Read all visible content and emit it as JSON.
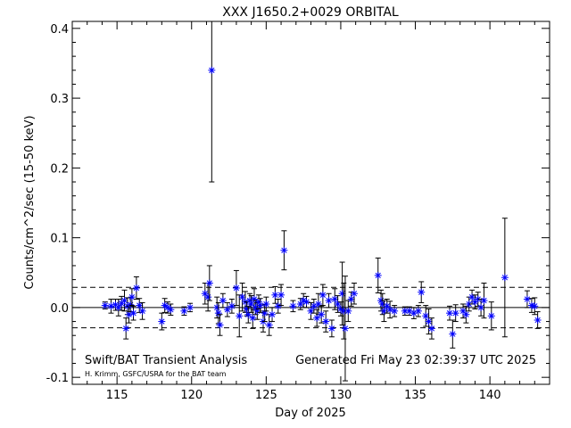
{
  "chart_data": {
    "type": "scatter",
    "title": "XXX J1650.2+0029 ORBITAL",
    "xlabel": "Day of 2025",
    "ylabel": "Counts/cm^2/sec (15-50 keV)",
    "xlim": [
      112,
      144
    ],
    "ylim": [
      -0.11,
      0.41
    ],
    "xticks": [
      115,
      120,
      125,
      130,
      135,
      140
    ],
    "xtick_labels": [
      "115",
      "120",
      "125",
      "130",
      "135",
      "140"
    ],
    "yticks": [
      -0.1,
      0.0,
      0.1,
      0.2,
      0.3,
      0.4
    ],
    "ytick_labels": [
      "-0.1",
      "0.0",
      "0.1",
      "0.2",
      "0.3",
      "0.4"
    ],
    "zero_line": 0.0,
    "threshold_lines": [
      0.029,
      -0.029
    ],
    "grid": false,
    "marker": "asterisk",
    "marker_color": "#0000ff",
    "errorbar_color": "#000000",
    "points": [
      [
        114.2,
        0.003,
        0.005
      ],
      [
        114.6,
        0.002,
        0.01
      ],
      [
        114.9,
        0.004,
        0.008
      ],
      [
        115.1,
        0.0,
        0.012
      ],
      [
        115.3,
        0.006,
        0.01
      ],
      [
        115.5,
        0.01,
        0.015
      ],
      [
        115.6,
        -0.03,
        0.015
      ],
      [
        115.7,
        0.002,
        0.012
      ],
      [
        115.8,
        -0.01,
        0.012
      ],
      [
        115.9,
        0.004,
        0.01
      ],
      [
        116.0,
        0.015,
        0.012
      ],
      [
        116.1,
        -0.008,
        0.01
      ],
      [
        116.3,
        0.028,
        0.016
      ],
      [
        116.5,
        0.003,
        0.01
      ],
      [
        116.7,
        -0.005,
        0.012
      ],
      [
        118.0,
        -0.02,
        0.012
      ],
      [
        118.2,
        0.003,
        0.01
      ],
      [
        118.4,
        0.0,
        0.008
      ],
      [
        118.6,
        -0.003,
        0.008
      ],
      [
        119.5,
        -0.005,
        0.006
      ],
      [
        119.9,
        0.0,
        0.006
      ],
      [
        120.9,
        0.02,
        0.015
      ],
      [
        121.1,
        0.015,
        0.02
      ],
      [
        121.2,
        0.035,
        0.025
      ],
      [
        121.35,
        0.34,
        0.16
      ],
      [
        121.7,
        0.0,
        0.015
      ],
      [
        121.8,
        -0.008,
        0.015
      ],
      [
        121.9,
        -0.025,
        0.015
      ],
      [
        122.1,
        0.01,
        0.01
      ],
      [
        122.4,
        -0.003,
        0.01
      ],
      [
        122.7,
        0.002,
        0.01
      ],
      [
        123.0,
        0.028,
        0.025
      ],
      [
        123.2,
        -0.012,
        0.03
      ],
      [
        123.4,
        0.015,
        0.02
      ],
      [
        123.6,
        0.008,
        0.015
      ],
      [
        123.7,
        -0.002,
        0.01
      ],
      [
        123.8,
        -0.01,
        0.012
      ],
      [
        123.9,
        0.01,
        0.01
      ],
      [
        124.0,
        0.005,
        0.012
      ],
      [
        124.1,
        -0.015,
        0.015
      ],
      [
        124.2,
        0.012,
        0.015
      ],
      [
        124.3,
        0.0,
        0.01
      ],
      [
        124.4,
        -0.005,
        0.012
      ],
      [
        124.5,
        0.008,
        0.01
      ],
      [
        124.6,
        0.003,
        0.01
      ],
      [
        124.8,
        -0.02,
        0.015
      ],
      [
        124.9,
        -0.008,
        0.012
      ],
      [
        125.0,
        0.005,
        0.01
      ],
      [
        125.2,
        -0.025,
        0.015
      ],
      [
        125.4,
        -0.01,
        0.01
      ],
      [
        125.6,
        0.018,
        0.012
      ],
      [
        125.8,
        0.002,
        0.01
      ],
      [
        126.0,
        0.018,
        0.015
      ],
      [
        126.2,
        0.082,
        0.028
      ],
      [
        126.8,
        0.002,
        0.008
      ],
      [
        127.3,
        0.005,
        0.008
      ],
      [
        127.5,
        0.01,
        0.01
      ],
      [
        127.7,
        0.008,
        0.008
      ],
      [
        128.0,
        -0.005,
        0.012
      ],
      [
        128.2,
        0.002,
        0.01
      ],
      [
        128.4,
        -0.015,
        0.012
      ],
      [
        128.5,
        0.005,
        0.015
      ],
      [
        128.7,
        -0.01,
        0.012
      ],
      [
        128.8,
        0.018,
        0.015
      ],
      [
        129.0,
        -0.02,
        0.015
      ],
      [
        129.2,
        0.01,
        0.01
      ],
      [
        129.4,
        -0.03,
        0.012
      ],
      [
        129.6,
        0.012,
        0.015
      ],
      [
        129.8,
        0.005,
        0.012
      ],
      [
        130.0,
        -0.002,
        0.01
      ],
      [
        130.1,
        0.02,
        0.045
      ],
      [
        130.2,
        -0.005,
        0.04
      ],
      [
        130.3,
        -0.03,
        0.075
      ],
      [
        130.5,
        -0.005,
        0.015
      ],
      [
        130.7,
        0.012,
        0.01
      ],
      [
        130.9,
        0.02,
        0.015
      ],
      [
        132.5,
        0.046,
        0.025
      ],
      [
        132.7,
        0.01,
        0.015
      ],
      [
        132.8,
        0.005,
        0.015
      ],
      [
        132.9,
        -0.005,
        0.015
      ],
      [
        133.1,
        0.002,
        0.01
      ],
      [
        133.3,
        -0.003,
        0.012
      ],
      [
        133.6,
        -0.005,
        0.008
      ],
      [
        134.3,
        -0.005,
        0.006
      ],
      [
        134.6,
        -0.005,
        0.006
      ],
      [
        134.9,
        -0.008,
        0.008
      ],
      [
        135.2,
        -0.005,
        0.008
      ],
      [
        135.4,
        0.022,
        0.015
      ],
      [
        135.7,
        -0.012,
        0.015
      ],
      [
        135.9,
        -0.02,
        0.018
      ],
      [
        136.1,
        -0.03,
        0.015
      ],
      [
        137.3,
        -0.008,
        0.01
      ],
      [
        137.5,
        -0.038,
        0.02
      ],
      [
        137.7,
        -0.008,
        0.012
      ],
      [
        138.2,
        -0.005,
        0.01
      ],
      [
        138.4,
        -0.01,
        0.012
      ],
      [
        138.6,
        0.005,
        0.01
      ],
      [
        138.8,
        0.015,
        0.01
      ],
      [
        139.0,
        0.008,
        0.01
      ],
      [
        139.2,
        0.012,
        0.01
      ],
      [
        139.4,
        0.0,
        0.012
      ],
      [
        139.6,
        0.01,
        0.025
      ],
      [
        140.1,
        -0.012,
        0.02
      ],
      [
        141.0,
        0.043,
        0.085
      ],
      [
        142.5,
        0.012,
        0.012
      ],
      [
        142.8,
        0.003,
        0.01
      ],
      [
        143.0,
        0.002,
        0.012
      ],
      [
        143.2,
        -0.018,
        0.012
      ]
    ]
  },
  "footer": {
    "left_title": "Swift/BAT Transient Analysis",
    "credit": "H. Krimm, GSFC/USRA for the BAT team",
    "generated": "Generated Fri May 23 02:39:37 UTC 2025"
  }
}
